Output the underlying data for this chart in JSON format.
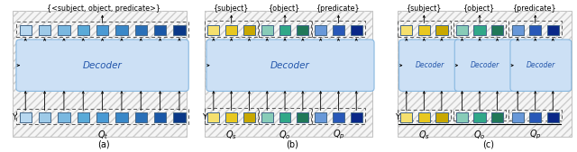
{
  "fig_width": 6.4,
  "fig_height": 1.69,
  "dpi": 100,
  "decoder_fill": "#cce0f5",
  "decoder_edge": "#88b8e0",
  "panel_labels": [
    "(a)",
    "(b)",
    "(c)"
  ],
  "title_a": "{<subject, object, predicate>}",
  "title_b_s": "{subject}",
  "title_b_o": "{object}",
  "title_b_p": "{predicate}",
  "colors_a": [
    "#b8d8f0",
    "#9ecae8",
    "#7ab8e0",
    "#5aaad8",
    "#4a9ad4",
    "#3a88c8",
    "#2a70b8",
    "#1a58a8",
    "#0a3888"
  ],
  "colors_s": [
    "#f5e06e",
    "#e8c820",
    "#c8a800"
  ],
  "colors_o": [
    "#88ccb8",
    "#30a888",
    "#207858"
  ],
  "colors_p": [
    "#6898d8",
    "#2858b8",
    "#0a2888"
  ]
}
